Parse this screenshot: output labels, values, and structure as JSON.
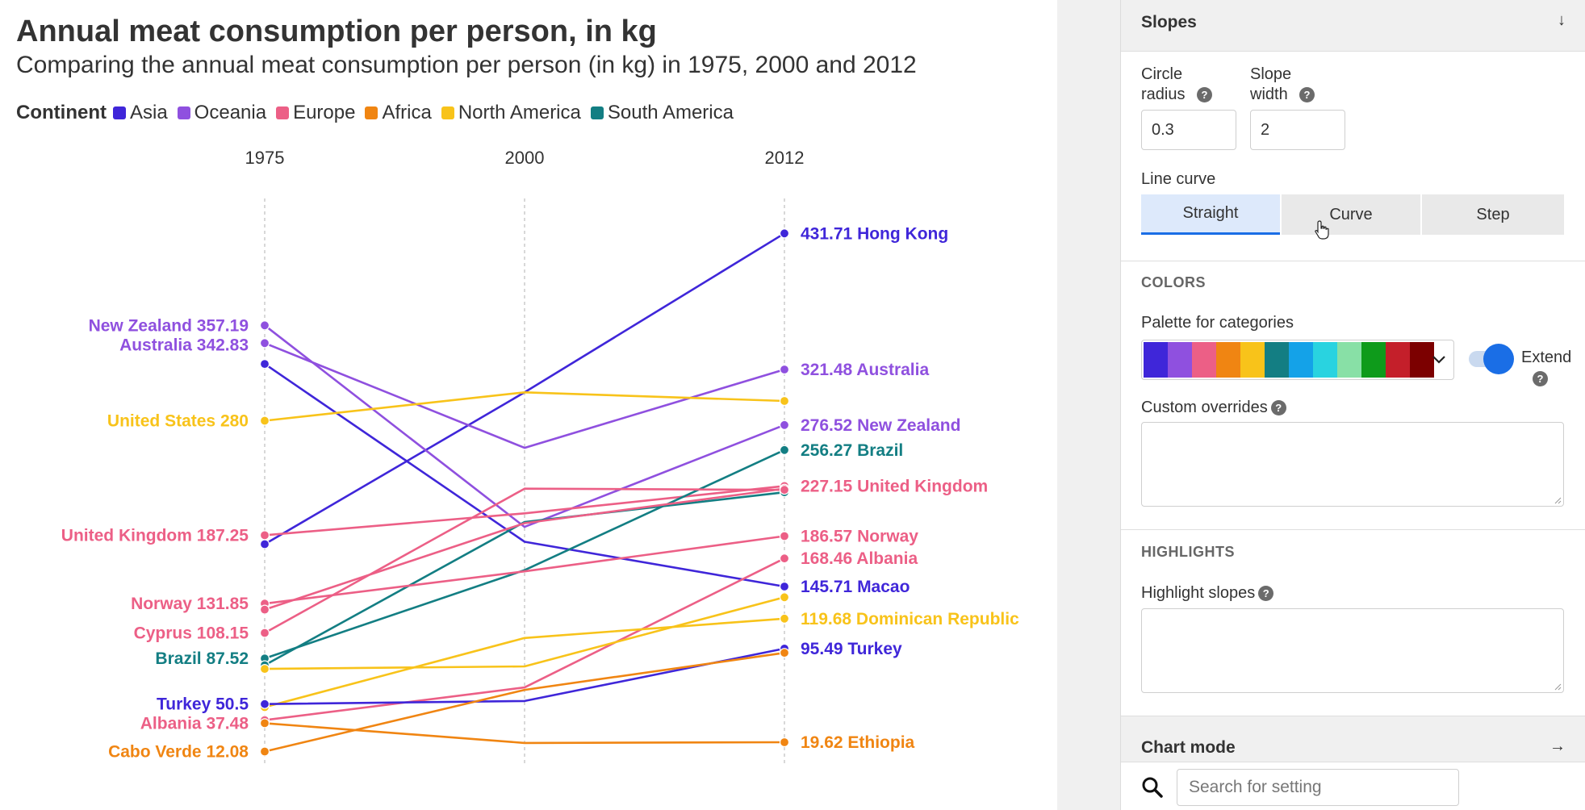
{
  "colors": {
    "accent": "#1a6ee6",
    "axis_text": "#333333",
    "panel_bg": "#f0f0f0"
  },
  "chart_data": {
    "type": "slope",
    "title": "Annual meat consumption per person, in kg",
    "subtitle": "Comparing the annual meat consumption per person (in kg) in 1975, 2000 and 2012",
    "legend_title": "Continent",
    "legend_placement": "top-left",
    "categories": [
      "1975",
      "2000",
      "2012"
    ],
    "ylim": [
      0,
      460
    ],
    "grid": true,
    "continents": [
      {
        "name": "Asia",
        "color": "#3f26d9"
      },
      {
        "name": "Oceania",
        "color": "#8f50df"
      },
      {
        "name": "Europe",
        "color": "#ec5f86"
      },
      {
        "name": "Africa",
        "color": "#f08512"
      },
      {
        "name": "North America",
        "color": "#f8c31a"
      },
      {
        "name": "South America",
        "color": "#137e83"
      }
    ],
    "series": [
      {
        "name": "Hong Kong",
        "continent": "Asia",
        "values": [
          180,
          303,
          431.71
        ],
        "right_label": "431.71 Hong Kong"
      },
      {
        "name": "Australia",
        "continent": "Oceania",
        "values": [
          342.83,
          258,
          321.48
        ],
        "left_label": "Australia 342.83",
        "right_label": "321.48 Australia"
      },
      {
        "name": "New Zealand",
        "continent": "Oceania",
        "values": [
          357.19,
          194,
          276.52
        ],
        "left_label": "New Zealand 357.19",
        "right_label": "276.52 New Zealand"
      },
      {
        "name": "Macao",
        "continent": "Asia",
        "values": [
          326,
          182,
          145.71
        ],
        "right_label": "145.71 Macao"
      },
      {
        "name": "United States",
        "continent": "North America",
        "values": [
          280,
          303,
          296
        ],
        "left_label": "United States 280"
      },
      {
        "name": "United Kingdom",
        "continent": "Europe",
        "values": [
          187.25,
          205,
          227.15
        ],
        "left_label": "United Kingdom 187.25",
        "right_label": "227.15 United Kingdom"
      },
      {
        "name": "Brazil",
        "continent": "South America",
        "values": [
          87.52,
          159,
          256.27
        ],
        "left_label": "Brazil 87.52",
        "right_label": "256.27 Brazil"
      },
      {
        "name": "Argentina",
        "continent": "South America",
        "values": [
          82,
          198,
          222
        ]
      },
      {
        "name": "Norway",
        "continent": "Europe",
        "values": [
          131.85,
          158,
          186.57
        ],
        "left_label": "Norway 131.85",
        "right_label": "186.57 Norway"
      },
      {
        "name": "France",
        "continent": "Europe",
        "values": [
          127,
          197,
          225
        ]
      },
      {
        "name": "Cyprus",
        "continent": "Europe",
        "values": [
          108.15,
          225,
          224
        ],
        "left_label": "Cyprus 108.15"
      },
      {
        "name": "Albania",
        "continent": "Europe",
        "values": [
          37.48,
          64,
          168.46
        ],
        "left_label": "Albania 37.48",
        "right_label": "168.46 Albania"
      },
      {
        "name": "Dominican Republic",
        "continent": "North America",
        "values": [
          48,
          104,
          119.68
        ],
        "right_label": "119.68 Dominican Republic"
      },
      {
        "name": "Mexico",
        "continent": "North America",
        "values": [
          79,
          81,
          137
        ]
      },
      {
        "name": "Turkey",
        "continent": "Asia",
        "values": [
          50.5,
          53,
          95.49
        ],
        "left_label": "Turkey 50.5",
        "right_label": "95.49 Turkey"
      },
      {
        "name": "Cabo Verde",
        "continent": "Africa",
        "values": [
          12.08,
          62,
          92
        ],
        "left_label": "Cabo Verde 12.08"
      },
      {
        "name": "Ethiopia",
        "continent": "Africa",
        "values": [
          35,
          19,
          19.62
        ],
        "right_label": "19.62 Ethiopia"
      }
    ]
  },
  "panel": {
    "slopes_header": "Slopes",
    "slopes_arrow": "↓",
    "circle_radius_label": "Circle\nradius",
    "circle_radius_value": "0.3",
    "slope_width_label": "Slope\nwidth",
    "slope_width_value": "2",
    "help_glyph": "?",
    "line_curve_label": "Line curve",
    "curve_options": [
      "Straight",
      "Curve",
      "Step"
    ],
    "curve_selected": "Straight",
    "colors_heading": "COLORS",
    "palette_label": "Palette for categories",
    "palette_colors": [
      "#3f26d9",
      "#8f50df",
      "#ec5f86",
      "#f08512",
      "#f8c31a",
      "#137e83",
      "#14a2e8",
      "#29d3e0",
      "#88e0a6",
      "#0e9b1b",
      "#c41f2a",
      "#7c0000"
    ],
    "extend_label": "Extend",
    "custom_overrides_label": "Custom overrides",
    "highlights_heading": "HIGHLIGHTS",
    "highlight_slopes_label": "Highlight slopes",
    "chart_mode_header": "Chart mode",
    "chart_mode_arrow": "→",
    "search_placeholder": "Search for setting"
  }
}
